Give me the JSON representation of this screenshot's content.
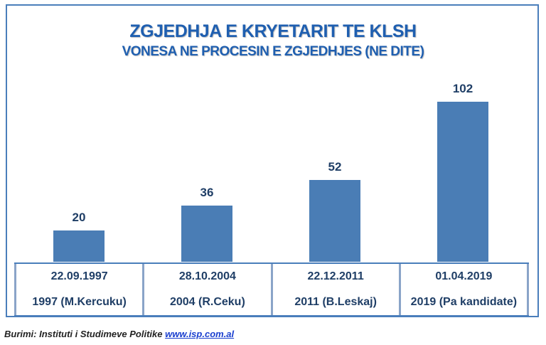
{
  "chart_data": {
    "type": "bar",
    "title": "ZGJEDHJA E KRYETARIT TE KLSH",
    "subtitle": "VONESA NE PROCESIN E ZGJEDHJES (NE DITE)",
    "categories": [
      {
        "date": "22.09.1997",
        "label": "1997 (M.Kercuku)"
      },
      {
        "date": "28.10.2004",
        "label": "2004 (R.Ceku)"
      },
      {
        "date": "22.12.2011",
        "label": "2011 (B.Leskaj)"
      },
      {
        "date": "01.04.2019",
        "label": "2019 (Pa kandidate)"
      }
    ],
    "values": [
      20,
      36,
      52,
      102
    ],
    "ylim": [
      0,
      102
    ],
    "xlabel": "",
    "ylabel": "",
    "bar_color": "#4a7db5",
    "grid": false
  },
  "source": {
    "text": "Burimi: Instituti i Studimeve Politike",
    "link": "www.isp.com.al"
  }
}
